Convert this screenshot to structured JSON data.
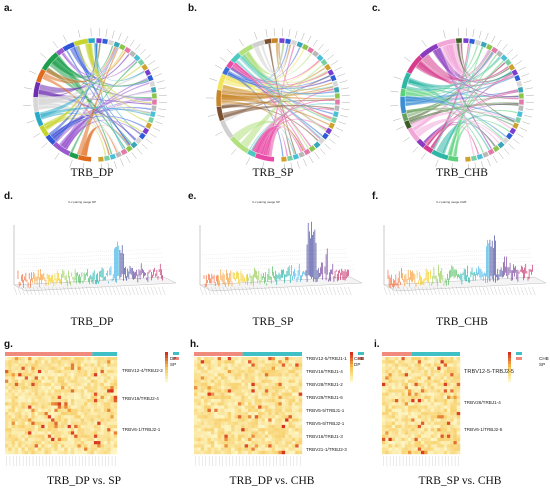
{
  "panels": {
    "a": {
      "letter": "a.",
      "caption": "TRB_DP"
    },
    "b": {
      "letter": "b.",
      "caption": "TRB_SP"
    },
    "c": {
      "letter": "c.",
      "caption": "TRB_CHB"
    },
    "d": {
      "letter": "d.",
      "caption": "TRB_DP",
      "title": "V-J pairing usage DP"
    },
    "e": {
      "letter": "e.",
      "caption": "TRB_SP",
      "title": "V-J pairing usage SP"
    },
    "f": {
      "letter": "f.",
      "caption": "TRB_CHB",
      "title": "V-J pairing usage CHB"
    },
    "g": {
      "letter": "g.",
      "caption": "TRB_DP vs. SP",
      "rows": [
        "TRBV12-4/TRBJ2-2",
        "TRBV16/TRBJ2-4",
        "TRBV6-1/TRBJ2-1"
      ],
      "legend": [
        "DP",
        "SP"
      ]
    },
    "h": {
      "letter": "h.",
      "caption": "TRB_DP vs. CHB",
      "rows": [
        "TRBV12-5/TRBJ1-1",
        "TRBV16/TRBJ1-4",
        "TRBV28/TRBJ1-2",
        "TRBV29/TRBJ1-6",
        "TRBV5-5/TRBJ1-1",
        "TRBV5-6/TRBJ2-1",
        "TRBV16/TRBJ1-3",
        "TRBV21-1/TRBJ2-3"
      ],
      "legend": [
        "CHB",
        "DP"
      ]
    },
    "i": {
      "letter": "i.",
      "caption": "TRB_SP vs. CHB",
      "rows": [
        "TRBV12-5-TRBJ2-5",
        "TRBV26/TRBJ1-4",
        "TRBV6-1/TRBJ2-5"
      ],
      "legend": [
        "CHB",
        "SP"
      ]
    }
  },
  "colors": {
    "dp_palette": [
      "#2aa9c6",
      "#c7d42d",
      "#2f55d8",
      "#9b59d0",
      "#1d9e4a",
      "#e06b1d",
      "#6d2fb0",
      "#d7d7d7"
    ],
    "sp_palette": [
      "#c8862a",
      "#7a4f2e",
      "#d0d0d0",
      "#b3e07e",
      "#4cc9c0",
      "#e94aa5",
      "#3a6fd8",
      "#f3e35a"
    ],
    "chb_palette": [
      "#3a5d23",
      "#f2a6d8",
      "#8b3bbf",
      "#d63c8c",
      "#2fb6a5",
      "#5ad17a",
      "#3b8ed4",
      "#6aa15c"
    ],
    "heat_low": "#fdf6c4",
    "heat_mid": "#f6c14a",
    "heat_high": "#d7301f",
    "top_bar": "#3ec0c5",
    "top_bar_alt": "#f08a7c"
  }
}
